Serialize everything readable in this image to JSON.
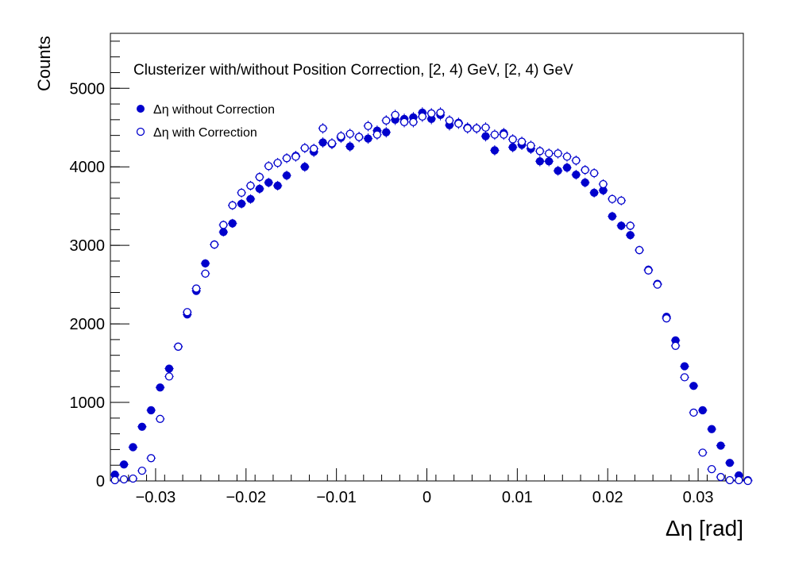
{
  "chart_data": {
    "type": "scatter",
    "title": "Clusterizer with/without Position Correction, [2, 4) GeV, [2, 4) GeV",
    "xlabel": "Δη  [rad]",
    "ylabel": "Counts",
    "xlim": [
      -0.035,
      0.035
    ],
    "ylim": [
      0,
      5700
    ],
    "x_ticks": [
      -0.03,
      -0.02,
      -0.01,
      0,
      0.01,
      0.02,
      0.03
    ],
    "x_tick_labels": [
      "−0.03",
      "−0.02",
      "−0.01",
      "0",
      "0.01",
      "0.02",
      "0.03"
    ],
    "y_ticks": [
      0,
      1000,
      2000,
      3000,
      4000,
      5000
    ],
    "y_tick_labels": [
      "0",
      "1000",
      "2000",
      "3000",
      "4000",
      "5000"
    ],
    "grid": false,
    "legend_position": "top-left",
    "series": [
      {
        "name": "Δη without Correction",
        "color": "#0000cc",
        "marker": "filled-circle",
        "x": [
          -0.0345,
          -0.0335,
          -0.0325,
          -0.0315,
          -0.0305,
          -0.0295,
          -0.0285,
          -0.0275,
          -0.0265,
          -0.0255,
          -0.0245,
          -0.0235,
          -0.0225,
          -0.0215,
          -0.0205,
          -0.0195,
          -0.0185,
          -0.0175,
          -0.0165,
          -0.0155,
          -0.0145,
          -0.0135,
          -0.0125,
          -0.0115,
          -0.0105,
          -0.0095,
          -0.0085,
          -0.0075,
          -0.0065,
          -0.0055,
          -0.0045,
          -0.0035,
          -0.0025,
          -0.0015,
          -0.0005,
          0.0005,
          0.0015,
          0.0025,
          0.0035,
          0.0045,
          0.0055,
          0.0065,
          0.0075,
          0.0085,
          0.0095,
          0.0105,
          0.0115,
          0.0125,
          0.0135,
          0.0145,
          0.0155,
          0.0165,
          0.0175,
          0.0185,
          0.0195,
          0.0205,
          0.0215,
          0.0225,
          0.0235,
          0.0245,
          0.0255,
          0.0265,
          0.0275,
          0.0285,
          0.0295,
          0.0305,
          0.0315,
          0.0325,
          0.0335,
          0.0345,
          0.0355
        ],
        "y": [
          80,
          210,
          430,
          690,
          900,
          1190,
          1430,
          1710,
          2120,
          2420,
          2770,
          3010,
          3170,
          3280,
          3530,
          3590,
          3720,
          3800,
          3760,
          3890,
          4140,
          4000,
          4190,
          4310,
          4290,
          4370,
          4260,
          4380,
          4360,
          4460,
          4440,
          4600,
          4610,
          4630,
          4690,
          4610,
          4660,
          4530,
          4560,
          4500,
          4490,
          4390,
          4210,
          4430,
          4250,
          4280,
          4230,
          4070,
          4070,
          3950,
          3990,
          3900,
          3800,
          3670,
          3700,
          3370,
          3250,
          3130,
          2940,
          2690,
          2510,
          2090,
          1790,
          1460,
          1210,
          900,
          660,
          450,
          230,
          70,
          10
        ]
      },
      {
        "name": "Δη with Correction",
        "color": "#0000cc",
        "marker": "open-circle",
        "x": [
          -0.0345,
          -0.0335,
          -0.0325,
          -0.0315,
          -0.0305,
          -0.0295,
          -0.0285,
          -0.0275,
          -0.0265,
          -0.0255,
          -0.0245,
          -0.0235,
          -0.0225,
          -0.0215,
          -0.0205,
          -0.0195,
          -0.0185,
          -0.0175,
          -0.0165,
          -0.0155,
          -0.0145,
          -0.0135,
          -0.0125,
          -0.0115,
          -0.0105,
          -0.0095,
          -0.0085,
          -0.0075,
          -0.0065,
          -0.0055,
          -0.0045,
          -0.0035,
          -0.0025,
          -0.0015,
          -0.0005,
          0.0005,
          0.0015,
          0.0025,
          0.0035,
          0.0045,
          0.0055,
          0.0065,
          0.0075,
          0.0085,
          0.0095,
          0.0105,
          0.0115,
          0.0125,
          0.0135,
          0.0145,
          0.0155,
          0.0165,
          0.0175,
          0.0185,
          0.0195,
          0.0205,
          0.0215,
          0.0225,
          0.0235,
          0.0245,
          0.0255,
          0.0265,
          0.0275,
          0.0285,
          0.0295,
          0.0305,
          0.0315,
          0.0325,
          0.0335,
          0.0345,
          0.0355
        ],
        "y": [
          10,
          20,
          30,
          130,
          290,
          790,
          1330,
          1710,
          2150,
          2450,
          2640,
          3010,
          3260,
          3510,
          3670,
          3760,
          3870,
          4010,
          4050,
          4110,
          4130,
          4240,
          4230,
          4490,
          4300,
          4390,
          4420,
          4380,
          4520,
          4410,
          4590,
          4660,
          4570,
          4570,
          4640,
          4680,
          4690,
          4590,
          4550,
          4490,
          4490,
          4500,
          4410,
          4410,
          4350,
          4320,
          4270,
          4200,
          4170,
          4170,
          4130,
          4080,
          3960,
          3920,
          3780,
          3590,
          3570,
          3250,
          2940,
          2680,
          2500,
          2070,
          1720,
          1320,
          870,
          360,
          150,
          50,
          10,
          10,
          0
        ]
      }
    ]
  }
}
